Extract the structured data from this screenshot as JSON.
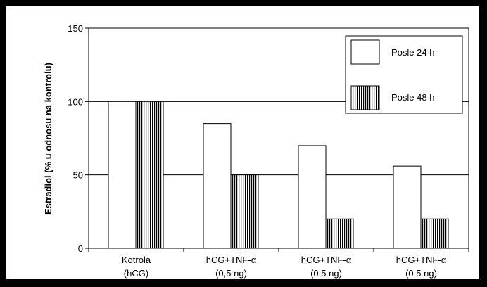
{
  "chart_data": {
    "type": "bar",
    "title": "",
    "xlabel": "",
    "ylabel": "Estradiol (% u odnosu na kontrolu)",
    "ylim": [
      0,
      150
    ],
    "yticks": [
      "0",
      "50",
      "100",
      "150"
    ],
    "ytick_values": [
      0,
      50,
      100,
      150
    ],
    "grid": "horizontal",
    "legend_position": "top-right",
    "categories": [
      {
        "line1": "Kotrola",
        "line2": "(hCG)"
      },
      {
        "line1": "hCG+TNF-α",
        "line2": "(0,5 ng)"
      },
      {
        "line1": "hCG+TNF-α",
        "line2": "(0,5 ng)"
      },
      {
        "line1": "hCG+TNF-α",
        "line2": "(0,5 ng)"
      }
    ],
    "series": [
      {
        "name": "Posle 24 h",
        "pattern": "plain",
        "values": [
          100,
          85,
          70,
          56
        ]
      },
      {
        "name": "Posle 48 h",
        "pattern": "vertical-stripes",
        "values": [
          100,
          50,
          20,
          20
        ]
      }
    ],
    "colors": {
      "fill": "#ffffff",
      "stroke": "#000000",
      "background": "#000000"
    }
  }
}
